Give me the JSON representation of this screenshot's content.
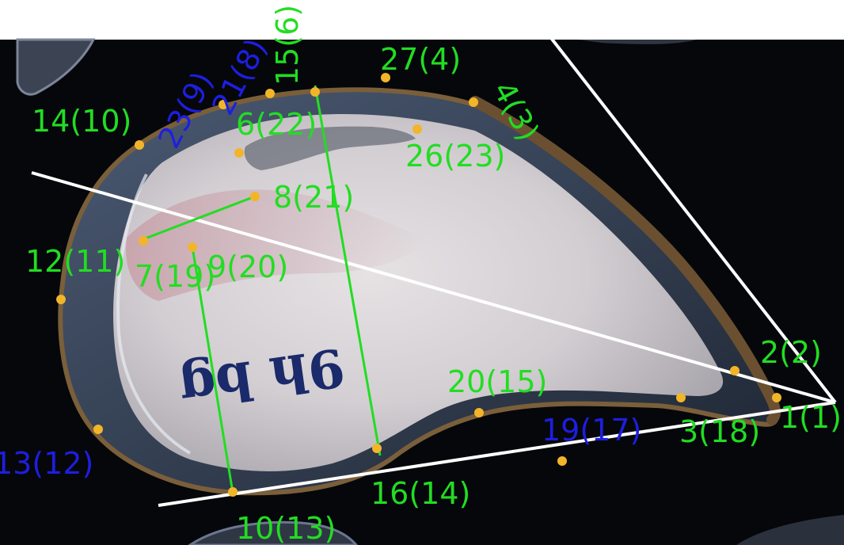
{
  "colors": {
    "background_dark": "#05070b",
    "top_white_band": "#ffffff",
    "shell_interior": "#d8d4d6",
    "shell_pink_tint": "#c6a2aa",
    "shell_edge": "#5b4a33",
    "shell_rim_translucent": "#40506a",
    "landmark_dot": "#f2b52a",
    "label_green": "#22dd22",
    "label_blue": "#1e1ee0",
    "measure_line_green": "#22dd22",
    "reference_line_white": "#ffffff",
    "ink_text": "#1a2a6a"
  },
  "specimen_marking": "9h bg",
  "landmarks": [
    {
      "id": "lm-1",
      "text": "1(1)",
      "color": "green"
    },
    {
      "id": "lm-2",
      "text": "2(2)",
      "color": "green"
    },
    {
      "id": "lm-3",
      "text": "3(18)",
      "color": "green"
    },
    {
      "id": "lm-4",
      "text": "4(3)",
      "color": "green"
    },
    {
      "id": "lm-6",
      "text": "6(22)",
      "color": "green"
    },
    {
      "id": "lm-7",
      "text": "7(19)",
      "color": "green"
    },
    {
      "id": "lm-8",
      "text": "8(21)",
      "color": "green"
    },
    {
      "id": "lm-9",
      "text": "9(20)",
      "color": "green"
    },
    {
      "id": "lm-10",
      "text": "10(13)",
      "color": "green"
    },
    {
      "id": "lm-12",
      "text": "12(11)",
      "color": "green"
    },
    {
      "id": "lm-13",
      "text": "13(12)",
      "color": "blue"
    },
    {
      "id": "lm-14",
      "text": "14(10)",
      "color": "green"
    },
    {
      "id": "lm-15",
      "text": "15(6)",
      "color": "green"
    },
    {
      "id": "lm-16",
      "text": "16(14)",
      "color": "green"
    },
    {
      "id": "lm-19",
      "text": "19(17)",
      "color": "blue"
    },
    {
      "id": "lm-20",
      "text": "20(15)",
      "color": "green"
    },
    {
      "id": "lm-21",
      "text": "21(8)",
      "color": "blue"
    },
    {
      "id": "lm-23",
      "text": "23(9)",
      "color": "blue"
    },
    {
      "id": "lm-26",
      "text": "26(23)",
      "color": "green"
    },
    {
      "id": "lm-27",
      "text": "27(4)",
      "color": "green"
    }
  ]
}
